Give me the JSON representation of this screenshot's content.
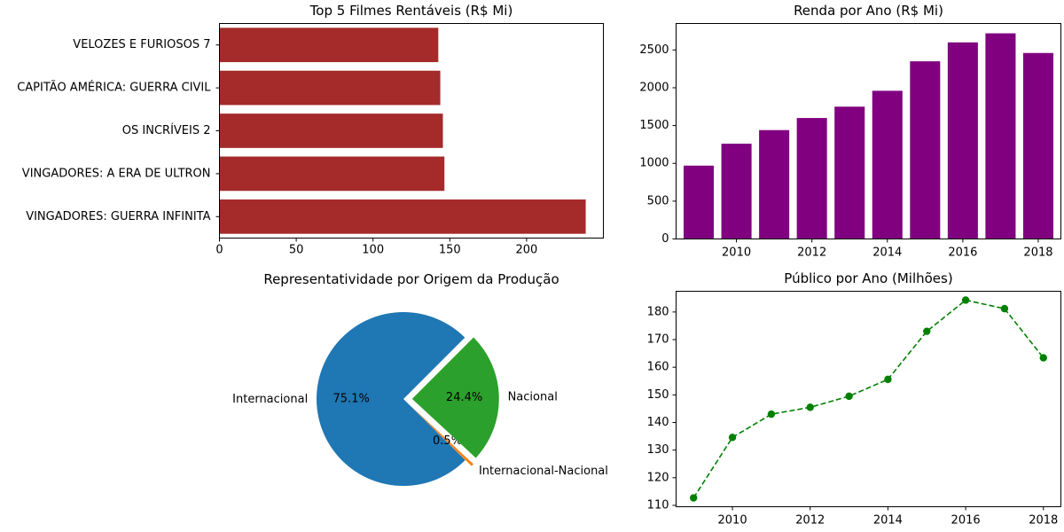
{
  "chart_data": [
    {
      "type": "bar",
      "orientation": "horizontal",
      "title": "Top 5 Filmes Rentáveis (R$ Mi)",
      "categories": [
        "VINGADORES: GUERRA INFINITA",
        "VINGADORES: A ERA DE ULTRON",
        "OS INCRÍVEIS 2",
        "CAPITÃO AMÉRICA: GUERRA CIVIL",
        "VELOZES E FURIOSOS 7"
      ],
      "values": [
        238.5,
        146.5,
        145.5,
        143.8,
        142.5
      ],
      "xlim": [
        0,
        250
      ],
      "xticks": [
        "0",
        "50",
        "100",
        "150",
        "200"
      ],
      "color": "#a52a2a"
    },
    {
      "type": "bar",
      "title": "Renda por Ano (R$ Mi)",
      "categories": [
        2009,
        2010,
        2011,
        2012,
        2013,
        2014,
        2015,
        2016,
        2017,
        2018
      ],
      "values": [
        970,
        1260,
        1440,
        1600,
        1750,
        1960,
        2350,
        2600,
        2720,
        2460
      ],
      "ylim": [
        0,
        2850
      ],
      "xticks": [
        "2010",
        "2012",
        "2014",
        "2016",
        "2018"
      ],
      "yticks": [
        "0",
        "500",
        "1000",
        "1500",
        "2000",
        "2500"
      ],
      "color": "#800080"
    },
    {
      "type": "pie",
      "title": "Representatividade por Origem da Produção",
      "labels": [
        "Internacional",
        "Internacional-Nacional",
        "Nacional"
      ],
      "values": [
        75.1,
        0.5,
        24.4
      ],
      "pct_labels": [
        "75.1%",
        "0.5%",
        "24.4%"
      ],
      "colors": [
        "#1f77b4",
        "#ff7f0e",
        "#2ca02c"
      ],
      "explode": [
        0,
        0.1,
        0.1
      ]
    },
    {
      "type": "line",
      "title": "Público por Ano (Milhões)",
      "x": [
        2009,
        2010,
        2011,
        2012,
        2013,
        2014,
        2015,
        2016,
        2017,
        2018
      ],
      "values": [
        112.7,
        134.6,
        143.0,
        145.5,
        149.5,
        155.6,
        173.0,
        184.3,
        181.2,
        163.4
      ],
      "ylim": [
        109.5,
        187.5
      ],
      "xticks": [
        "2010",
        "2012",
        "2014",
        "2016",
        "2018"
      ],
      "yticks": [
        "110",
        "120",
        "130",
        "140",
        "150",
        "160",
        "170",
        "180"
      ],
      "color": "#008000",
      "linestyle": "dashed",
      "marker": "circle"
    }
  ]
}
